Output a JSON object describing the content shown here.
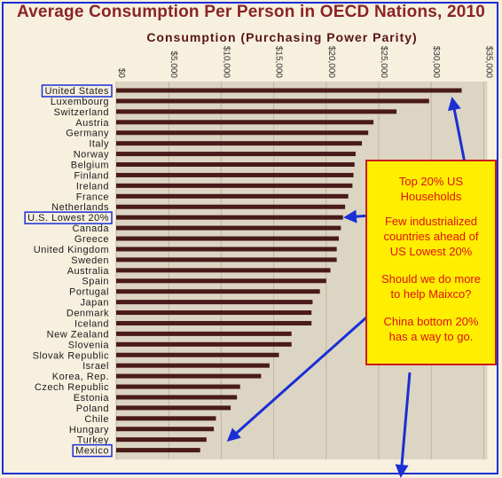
{
  "title": "Average Consumption Per Person in OECD Nations, 2010",
  "subtitle": "Consumption (Purchasing Power Parity)",
  "chart_data": {
    "type": "bar",
    "orientation": "horizontal",
    "title": "Average Consumption Per Person in OECD Nations, 2010",
    "subtitle": "Consumption (Purchasing Power Parity)",
    "xlim": [
      0,
      35000
    ],
    "ticks": [
      "$0",
      "$5,000",
      "$10,000",
      "$15,000",
      "$20,000",
      "$25,000",
      "$30,000",
      "$35,000"
    ],
    "tick_values": [
      0,
      5000,
      10000,
      15000,
      20000,
      25000,
      30000,
      35000
    ],
    "categories": [
      "United States",
      "Luxembourg",
      "Switzerland",
      "Austria",
      "Germany",
      "Italy",
      "Norway",
      "Belgium",
      "Finland",
      "Ireland",
      "France",
      "Netherlands",
      "U.S. Lowest 20%",
      "Canada",
      "Greece",
      "United Kingdom",
      "Sweden",
      "Australia",
      "Spain",
      "Portugal",
      "Japan",
      "Denmark",
      "Iceland",
      "New Zealand",
      "Slovenia",
      "Slovak Republic",
      "Israel",
      "Korea, Rep.",
      "Czech Republic",
      "Estonia",
      "Poland",
      "Chile",
      "Hungary",
      "Turkey",
      "Mexico"
    ],
    "values": [
      32900,
      29800,
      26700,
      24500,
      24000,
      23400,
      22800,
      22700,
      22600,
      22500,
      22100,
      21800,
      21600,
      21400,
      21200,
      21000,
      21000,
      20400,
      20000,
      19400,
      18700,
      18600,
      18600,
      16700,
      16700,
      15500,
      14600,
      13800,
      11800,
      11500,
      10900,
      9500,
      9300,
      8600,
      8000
    ],
    "highlighted": [
      "United States",
      "U.S. Lowest 20%",
      "Mexico"
    ],
    "colors": {
      "bar": "#4a1a1a",
      "plot_bg": "#ddd5c3",
      "highlight_box": "#1a2fd6",
      "arrow": "#1a2fd6"
    },
    "grid": true
  },
  "callout": {
    "line1": "Top 20% US",
    "line2": "Households",
    "line3": "Few industrialized",
    "line4": "countries ahead of",
    "line5": "US Lowest 20%",
    "line6": "Should we do more",
    "line7": "to help Maixco?",
    "line8": "China bottom 20%",
    "line9": "has a way to go.",
    "colors": {
      "background": "#ffee00",
      "text": "#e01010",
      "border": "#c91b1b"
    }
  }
}
